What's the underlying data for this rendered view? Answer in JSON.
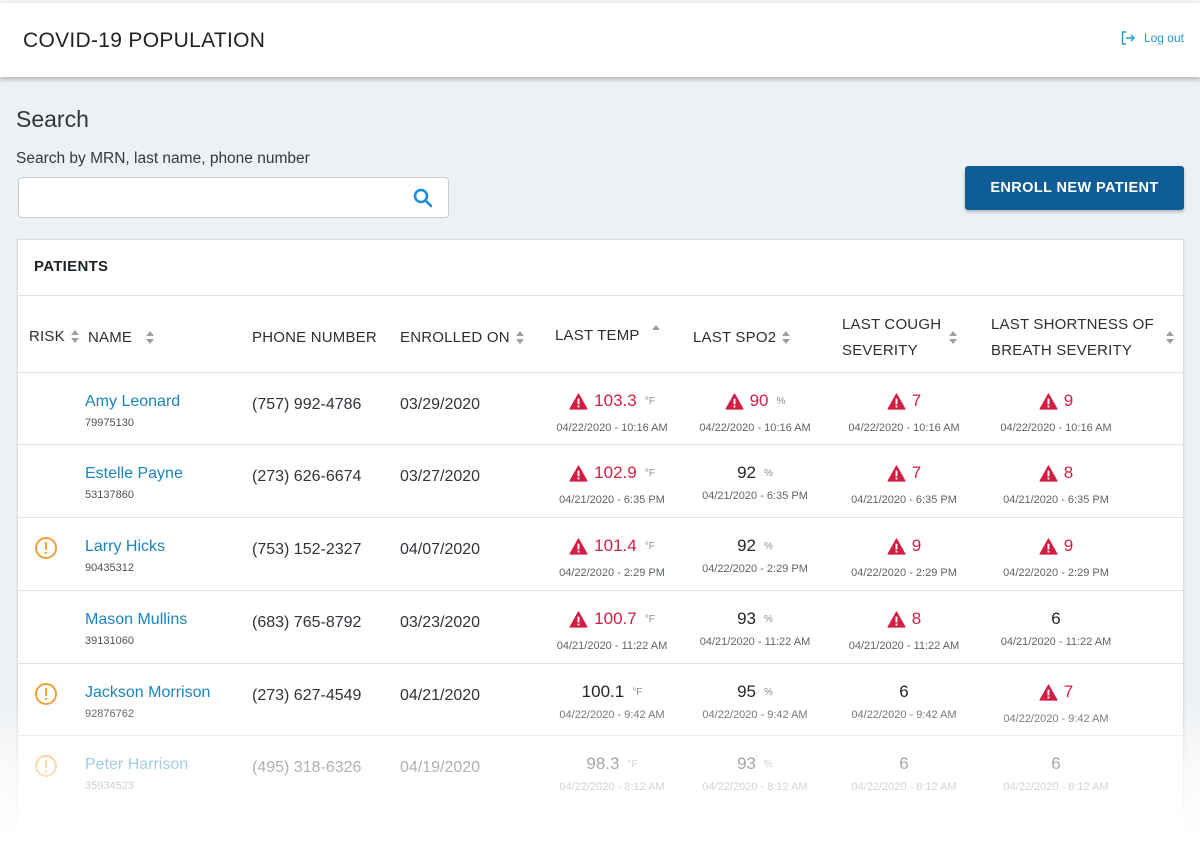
{
  "header": {
    "title": "COVID-19 POPULATION",
    "logout_label": "Log out"
  },
  "search": {
    "heading": "Search",
    "label": "Search by MRN, last name, phone number",
    "value": "",
    "placeholder": ""
  },
  "actions": {
    "enroll_label": "ENROLL NEW PATIENT"
  },
  "patients": {
    "title": "PATIENTS",
    "columns": {
      "risk": "RISK",
      "name": "NAME",
      "phone": "PHONE NUMBER",
      "enrolled": "ENROLLED ON",
      "temp": "LAST TEMP",
      "spo2": "LAST SPO2",
      "cough_1": "LAST COUGH",
      "cough_2": "SEVERITY",
      "sob_1": "LAST SHORTNESS OF",
      "sob_2": "BREATH SEVERITY"
    },
    "rows": [
      {
        "risk": false,
        "name": "Amy Leonard",
        "mrn": "79975130",
        "phone": "(757) 992-4786",
        "enrolled": "03/29/2020",
        "temp": {
          "value": "103.3",
          "unit": "°F",
          "time": "04/22/2020 - 10:16 AM",
          "alert": true
        },
        "spo2": {
          "value": "90",
          "unit": "%",
          "time": "04/22/2020 - 10:16 AM",
          "alert": true
        },
        "cough": {
          "value": "7",
          "time": "04/22/2020 - 10:16 AM",
          "alert": true
        },
        "sob": {
          "value": "9",
          "time": "04/22/2020 - 10:16 AM",
          "alert": true
        }
      },
      {
        "risk": false,
        "name": "Estelle Payne",
        "mrn": "53137860",
        "phone": "(273) 626-6674",
        "enrolled": "03/27/2020",
        "temp": {
          "value": "102.9",
          "unit": "°F",
          "time": "04/21/2020 - 6:35 PM",
          "alert": true
        },
        "spo2": {
          "value": "92",
          "unit": "%",
          "time": "04/21/2020 - 6:35 PM",
          "alert": false
        },
        "cough": {
          "value": "7",
          "time": "04/21/2020 - 6:35 PM",
          "alert": true
        },
        "sob": {
          "value": "8",
          "time": "04/21/2020 - 6:35 PM",
          "alert": true
        }
      },
      {
        "risk": true,
        "name": "Larry Hicks",
        "mrn": "90435312",
        "phone": "(753) 152-2327",
        "enrolled": "04/07/2020",
        "temp": {
          "value": "101.4",
          "unit": "°F",
          "time": "04/22/2020 - 2:29 PM",
          "alert": true
        },
        "spo2": {
          "value": "92",
          "unit": "%",
          "time": "04/22/2020 - 2:29 PM",
          "alert": false
        },
        "cough": {
          "value": "9",
          "time": "04/22/2020 - 2:29 PM",
          "alert": true
        },
        "sob": {
          "value": "9",
          "time": "04/22/2020 - 2:29 PM",
          "alert": true
        }
      },
      {
        "risk": false,
        "name": "Mason Mullins",
        "mrn": "39131060",
        "phone": "(683) 765-8792",
        "enrolled": "03/23/2020",
        "temp": {
          "value": "100.7",
          "unit": "°F",
          "time": "04/21/2020 - 11:22 AM",
          "alert": true
        },
        "spo2": {
          "value": "93",
          "unit": "%",
          "time": "04/21/2020 - 11:22 AM",
          "alert": false
        },
        "cough": {
          "value": "8",
          "time": "04/21/2020 - 11:22 AM",
          "alert": true
        },
        "sob": {
          "value": "6",
          "time": "04/21/2020 - 11:22 AM",
          "alert": false
        }
      },
      {
        "risk": true,
        "name": "Jackson Morrison",
        "mrn": "92876762",
        "phone": "(273) 627-4549",
        "enrolled": "04/21/2020",
        "temp": {
          "value": "100.1",
          "unit": "°F",
          "time": "04/22/2020 - 9:42 AM",
          "alert": false
        },
        "spo2": {
          "value": "95",
          "unit": "%",
          "time": "04/22/2020 - 9:42 AM",
          "alert": false
        },
        "cough": {
          "value": "6",
          "time": "04/22/2020 - 9:42 AM",
          "alert": false
        },
        "sob": {
          "value": "7",
          "time": "04/22/2020 - 9:42 AM",
          "alert": true
        }
      },
      {
        "risk": true,
        "name": "Peter Harrison",
        "mrn": "35934523",
        "phone": "(495) 318-6326",
        "enrolled": "04/19/2020",
        "temp": {
          "value": "98.3",
          "unit": "°F",
          "time": "04/22/2020 - 8:12 AM",
          "alert": false
        },
        "spo2": {
          "value": "93",
          "unit": "%",
          "time": "04/22/2020 - 8:12 AM",
          "alert": false
        },
        "cough": {
          "value": "6",
          "time": "04/22/2020 - 8:12 AM",
          "alert": false
        },
        "sob": {
          "value": "6",
          "time": "04/22/2020 - 8:12 AM",
          "alert": false
        }
      }
    ]
  },
  "colors": {
    "brand": "#0f5d96",
    "link": "#1a84bf",
    "alert": "#d31e44",
    "risk": "#f0a13a"
  }
}
